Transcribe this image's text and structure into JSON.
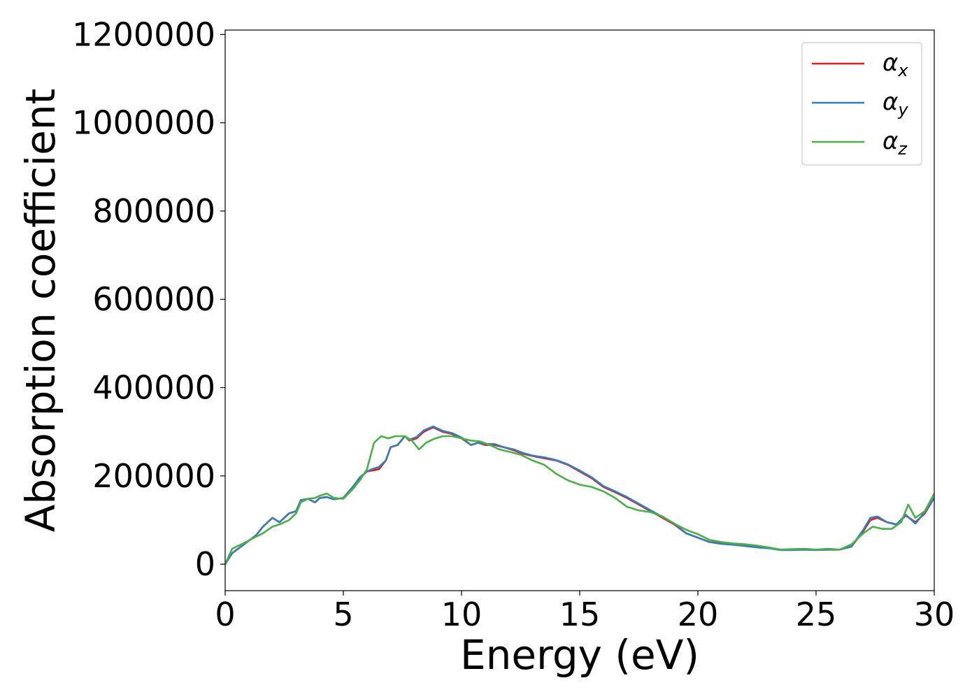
{
  "chart_data": {
    "type": "line",
    "title": "",
    "xlabel": "Energy (eV)",
    "ylabel": "Absorption coefficient",
    "xlim": [
      0,
      30
    ],
    "ylim": [
      -60000,
      1210000
    ],
    "xticks": [
      0,
      5,
      10,
      15,
      20,
      25,
      30
    ],
    "yticks": [
      0,
      200000,
      400000,
      600000,
      800000,
      1000000,
      1200000
    ],
    "grid": false,
    "legend_position": "top-right",
    "series": [
      {
        "name": "α",
        "subscript": "x",
        "color": "#e41a1c",
        "x": [
          0,
          0.3,
          0.8,
          1.3,
          1.6,
          2.0,
          2.3,
          2.7,
          3.0,
          3.2,
          3.5,
          3.8,
          4.0,
          4.3,
          4.6,
          5.0,
          5.4,
          5.7,
          6.0,
          6.2,
          6.5,
          6.8,
          7.0,
          7.3,
          7.6,
          7.8,
          8.1,
          8.4,
          8.8,
          9.2,
          9.6,
          10.0,
          10.4,
          10.7,
          11.0,
          11.4,
          11.8,
          12.2,
          12.6,
          13.0,
          13.5,
          14.0,
          14.5,
          15.0,
          15.5,
          16.0,
          16.5,
          17.0,
          17.5,
          18.0,
          18.5,
          19.0,
          19.5,
          20.0,
          20.5,
          21.0,
          21.5,
          22.0,
          22.5,
          23.0,
          23.5,
          24.0,
          24.5,
          25.0,
          25.5,
          26.0,
          26.5,
          27.0,
          27.3,
          27.6,
          28.0,
          28.4,
          28.8,
          29.2,
          29.6,
          30.0
        ],
        "values": [
          0,
          25000,
          45000,
          65000,
          85000,
          105000,
          95000,
          115000,
          120000,
          145000,
          148000,
          140000,
          150000,
          152000,
          147000,
          150000,
          175000,
          195000,
          210000,
          212000,
          215000,
          235000,
          265000,
          270000,
          290000,
          280000,
          285000,
          300000,
          310000,
          300000,
          295000,
          285000,
          270000,
          275000,
          270000,
          270000,
          265000,
          258000,
          250000,
          245000,
          240000,
          235000,
          225000,
          210000,
          195000,
          175000,
          163000,
          150000,
          135000,
          120000,
          105000,
          90000,
          70000,
          60000,
          50000,
          48000,
          45000,
          42000,
          40000,
          37000,
          33000,
          33000,
          33000,
          33000,
          33000,
          33000,
          40000,
          75000,
          100000,
          105000,
          95000,
          90000,
          110000,
          95000,
          115000,
          150000
        ]
      },
      {
        "name": "α",
        "subscript": "y",
        "color": "#377eb8",
        "x": [
          0,
          0.3,
          0.8,
          1.3,
          1.6,
          2.0,
          2.3,
          2.7,
          3.0,
          3.2,
          3.5,
          3.8,
          4.0,
          4.3,
          4.6,
          5.0,
          5.4,
          5.7,
          6.0,
          6.2,
          6.5,
          6.8,
          7.0,
          7.3,
          7.6,
          7.8,
          8.1,
          8.4,
          8.8,
          9.2,
          9.6,
          10.0,
          10.4,
          10.7,
          11.0,
          11.4,
          11.8,
          12.2,
          12.6,
          13.0,
          13.5,
          14.0,
          14.5,
          15.0,
          15.5,
          16.0,
          16.5,
          17.0,
          17.5,
          18.0,
          18.5,
          19.0,
          19.5,
          20.0,
          20.5,
          21.0,
          21.5,
          22.0,
          22.5,
          23.0,
          23.5,
          24.0,
          24.5,
          25.0,
          25.5,
          26.0,
          26.5,
          27.0,
          27.3,
          27.6,
          28.0,
          28.4,
          28.8,
          29.2,
          29.6,
          30.0
        ],
        "values": [
          0,
          25000,
          45000,
          65000,
          85000,
          105000,
          95000,
          115000,
          120000,
          145000,
          148000,
          140000,
          150000,
          152000,
          147000,
          150000,
          175000,
          197000,
          210000,
          215000,
          220000,
          235000,
          265000,
          270000,
          290000,
          282000,
          288000,
          303000,
          312000,
          302000,
          297000,
          287000,
          270000,
          275000,
          272000,
          272000,
          265000,
          260000,
          252000,
          246000,
          242000,
          236000,
          226000,
          212000,
          197000,
          177000,
          165000,
          152000,
          137000,
          122000,
          107000,
          92000,
          70000,
          60000,
          50000,
          46000,
          44000,
          41000,
          38000,
          36000,
          32000,
          32000,
          33000,
          32000,
          33000,
          33000,
          40000,
          78000,
          105000,
          108000,
          95000,
          90000,
          112000,
          92000,
          118000,
          150000
        ]
      },
      {
        "name": "α",
        "subscript": "z",
        "color": "#4daf4a",
        "x": [
          0,
          0.3,
          0.8,
          1.3,
          1.6,
          2.0,
          2.3,
          2.7,
          3.0,
          3.2,
          3.5,
          3.8,
          4.0,
          4.3,
          4.6,
          5.0,
          5.4,
          5.7,
          6.0,
          6.3,
          6.6,
          6.9,
          7.2,
          7.6,
          7.9,
          8.2,
          8.5,
          8.8,
          9.2,
          9.6,
          10.0,
          10.4,
          10.8,
          11.2,
          11.6,
          12.0,
          12.5,
          13.0,
          13.5,
          14.0,
          14.5,
          15.0,
          15.5,
          16.0,
          16.5,
          17.0,
          17.5,
          18.0,
          18.5,
          19.0,
          19.5,
          20.0,
          20.5,
          21.0,
          21.5,
          22.0,
          22.5,
          23.0,
          23.5,
          24.0,
          24.5,
          25.0,
          25.5,
          26.0,
          26.5,
          27.0,
          27.4,
          27.8,
          28.2,
          28.6,
          28.9,
          29.2,
          29.6,
          30.0
        ],
        "values": [
          0,
          35000,
          48000,
          62000,
          70000,
          85000,
          90000,
          100000,
          115000,
          140000,
          148000,
          150000,
          155000,
          160000,
          150000,
          148000,
          170000,
          190000,
          215000,
          275000,
          290000,
          285000,
          290000,
          290000,
          280000,
          260000,
          275000,
          283000,
          290000,
          290000,
          285000,
          280000,
          278000,
          270000,
          260000,
          255000,
          248000,
          235000,
          225000,
          205000,
          190000,
          180000,
          175000,
          165000,
          150000,
          130000,
          122000,
          118000,
          108000,
          92000,
          78000,
          68000,
          55000,
          50000,
          47000,
          45000,
          42000,
          38000,
          33000,
          34000,
          35000,
          33000,
          35000,
          33000,
          45000,
          70000,
          85000,
          80000,
          80000,
          95000,
          135000,
          105000,
          120000,
          160000
        ]
      }
    ]
  }
}
